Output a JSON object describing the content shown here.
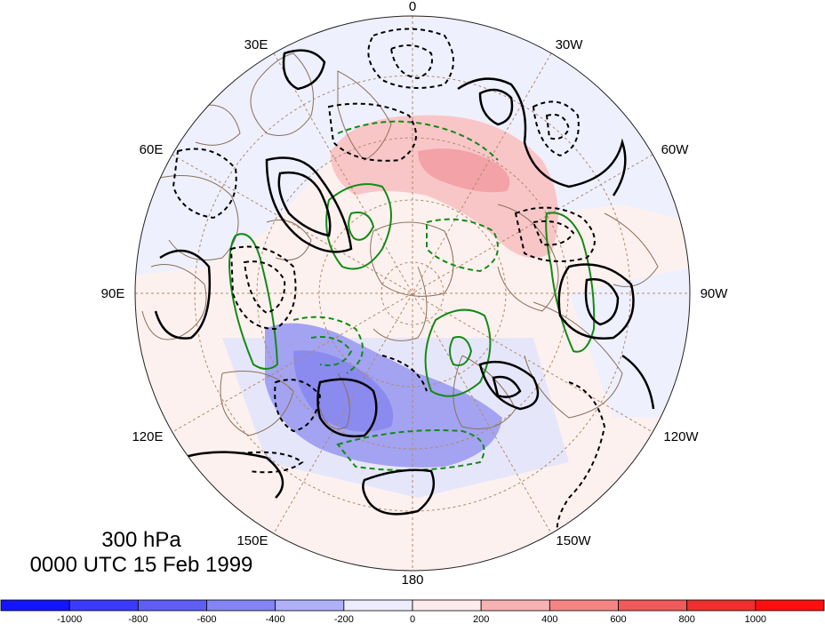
{
  "title": {
    "level": "300 hPa",
    "datetime": "0000 UTC 15 Feb 1999"
  },
  "longitude_labels": [
    "0",
    "30W",
    "60W",
    "90W",
    "120W",
    "150W",
    "180",
    "150E",
    "120E",
    "90E",
    "60E",
    "30E"
  ],
  "colorbar": {
    "ticks": [
      "-1000",
      "-800",
      "-600",
      "-400",
      "-200",
      "0",
      "200",
      "400",
      "600",
      "800",
      "1000"
    ],
    "colors": [
      "#1414ff",
      "#3b3bff",
      "#5e5ef7",
      "#8484f3",
      "#b0b0f8",
      "#ececfd",
      "#fdeceb",
      "#f7b3b3",
      "#f58585",
      "#f05a5a",
      "#ee3030",
      "#ff1010"
    ]
  },
  "map_colors": {
    "coast": "#8b6f5a",
    "grid": "#b08a6a",
    "solid_contour": "#000000",
    "green_contour": "#138a13",
    "positive_shading": "#f7a9ad",
    "negative_shading": "#7777ee"
  }
}
